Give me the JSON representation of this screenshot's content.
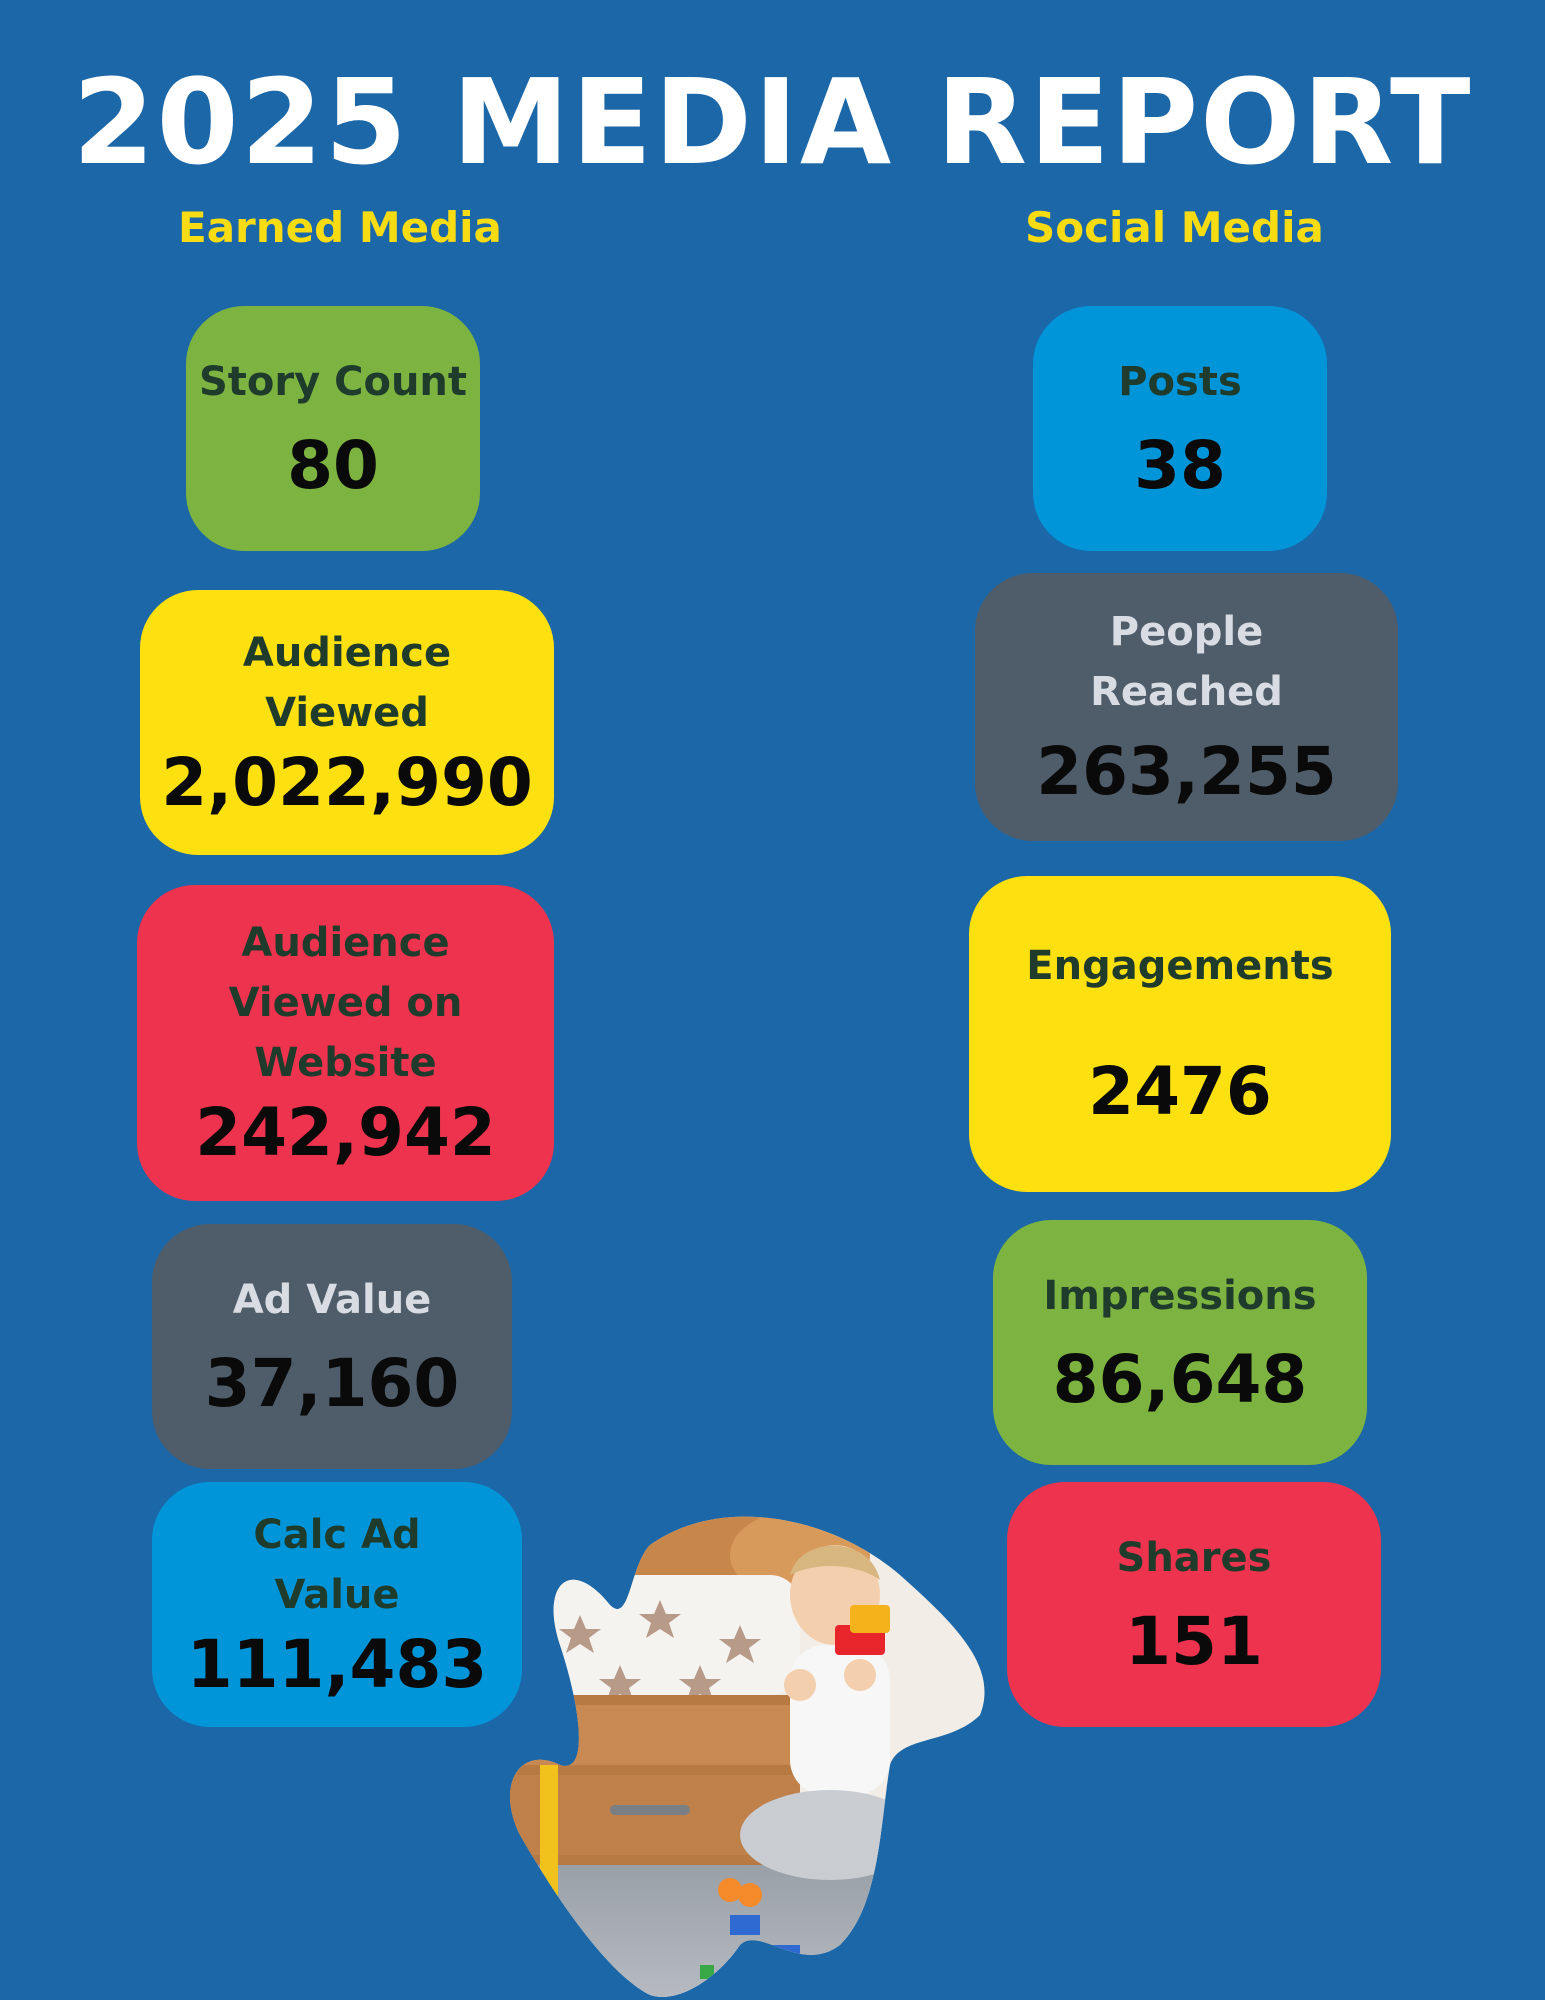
{
  "title": "2025 MEDIA REPORT",
  "earned": {
    "heading": "Earned Media",
    "story_count": {
      "label": "Story Count",
      "value": "80"
    },
    "audience_viewed": {
      "label_1": "Audience",
      "label_2": "Viewed",
      "value": "2,022,990"
    },
    "audience_website": {
      "label_1": "Audience",
      "label_2": "Viewed on",
      "label_3": "Website",
      "value": "242,942"
    },
    "ad_value": {
      "label": "Ad Value",
      "value": "37,160"
    },
    "calc_ad_value": {
      "label_1": "Calc Ad",
      "label_2": "Value",
      "value": "111,483"
    }
  },
  "social": {
    "heading": "Social Media",
    "posts": {
      "label": "Posts",
      "value": "38"
    },
    "people_reached": {
      "label_1": "People",
      "label_2": "Reached",
      "value": "263,255"
    },
    "engagements": {
      "label": "Engagements",
      "value": "2476"
    },
    "impressions": {
      "label": "Impressions",
      "value": "86,648"
    },
    "shares": {
      "label": "Shares",
      "value": "151"
    }
  },
  "colors": {
    "background": "#1c67a8",
    "heading_yellow": "#f7dc14",
    "green": "#7db340",
    "yellow": "#fde010",
    "red": "#ee334e",
    "gray": "#4f5d6a",
    "cyan": "#0095d8"
  }
}
